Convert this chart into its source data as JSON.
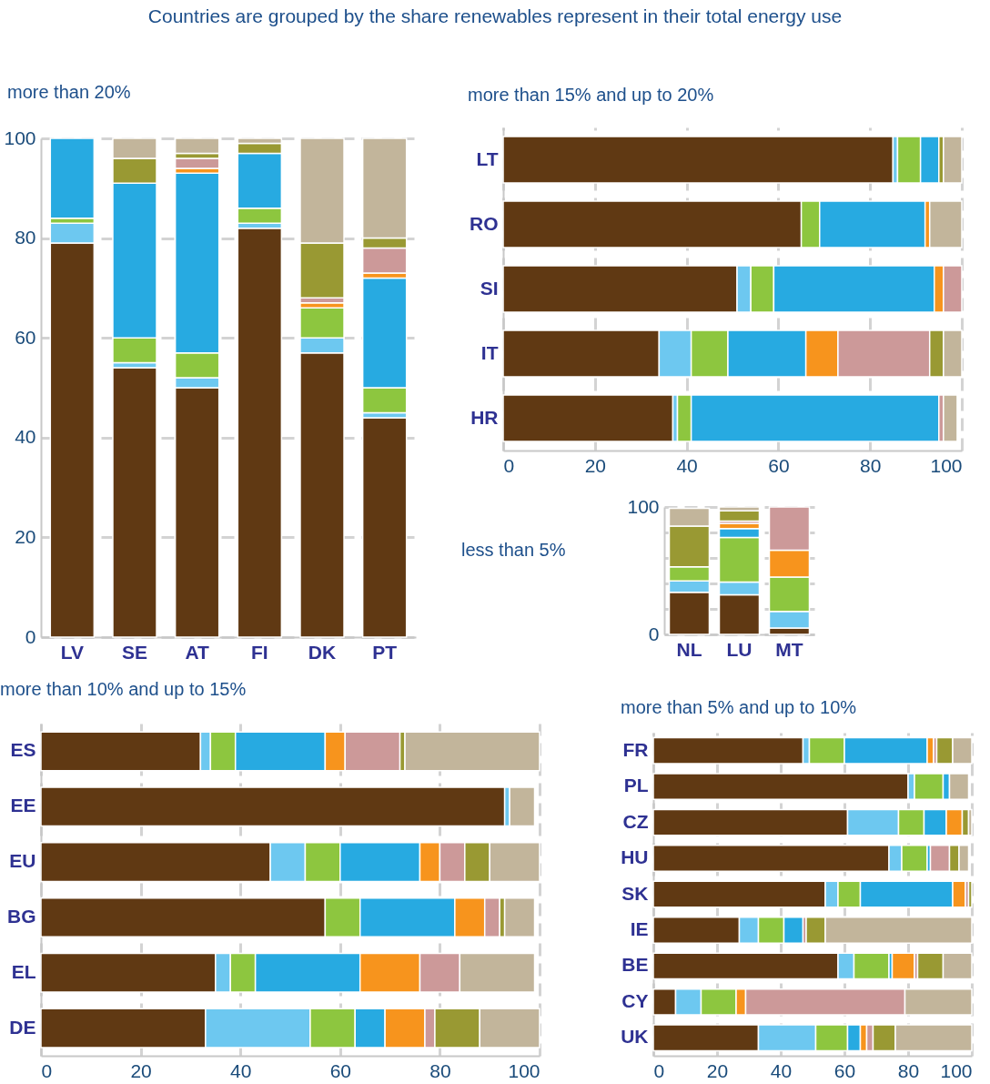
{
  "chart_data": [
    {
      "type": "bar",
      "stacked": true,
      "title": "Countries are grouped by the share renewables represent in their total energy use",
      "subtitle": "more than 20%",
      "categories": [
        "LV",
        "SE",
        "AT",
        "FI",
        "DK",
        "PT"
      ],
      "ylim": [
        0,
        100
      ],
      "yticks": [
        0,
        20,
        40,
        60,
        80,
        100
      ],
      "grid": "y",
      "series": [
        {
          "color": "#603913",
          "values": [
            79,
            54,
            50,
            82,
            57,
            44
          ]
        },
        {
          "color": "#6dc8f0",
          "values": [
            4,
            1,
            2,
            1,
            3,
            1
          ]
        },
        {
          "color": "#8dc63f",
          "values": [
            1,
            5,
            5,
            3,
            6,
            5
          ]
        },
        {
          "color": "#27aae1",
          "values": [
            16,
            31,
            36,
            11,
            null,
            22
          ]
        },
        {
          "color": "#f7941d",
          "values": [
            null,
            null,
            1,
            null,
            1,
            1
          ]
        },
        {
          "color": "#cc9999",
          "values": [
            null,
            null,
            2,
            null,
            1,
            5
          ]
        },
        {
          "color": "#999933",
          "values": [
            null,
            5,
            1,
            2,
            11,
            2
          ]
        },
        {
          "color": "#c2b59b",
          "values": [
            null,
            4,
            3,
            1,
            21,
            20
          ]
        }
      ]
    },
    {
      "type": "bar",
      "stacked": true,
      "orientation": "horizontal",
      "subtitle": "more than 15% and up to 20%",
      "categories": [
        "LT",
        "RO",
        "SI",
        "IT",
        "HR"
      ],
      "xlim": [
        0,
        100
      ],
      "xticks": [
        0,
        20,
        40,
        60,
        80,
        100
      ],
      "grid": "x",
      "series": [
        {
          "color": "#603913",
          "values": [
            85,
            65,
            51,
            34,
            37
          ]
        },
        {
          "color": "#6dc8f0",
          "values": [
            1,
            null,
            3,
            7,
            1
          ]
        },
        {
          "color": "#8dc63f",
          "values": [
            5,
            4,
            5,
            8,
            3
          ]
        },
        {
          "color": "#27aae1",
          "values": [
            4,
            23,
            35,
            17,
            54
          ]
        },
        {
          "color": "#f7941d",
          "values": [
            null,
            1,
            2,
            7,
            null
          ]
        },
        {
          "color": "#cc9999",
          "values": [
            null,
            null,
            4,
            20,
            1
          ]
        },
        {
          "color": "#999933",
          "values": [
            1,
            null,
            null,
            3,
            null
          ]
        },
        {
          "color": "#c2b59b",
          "values": [
            4,
            7,
            null,
            4,
            3
          ]
        }
      ]
    },
    {
      "type": "bar",
      "stacked": true,
      "subtitle": "less than 5%",
      "categories": [
        "NL",
        "LU",
        "MT"
      ],
      "ylim": [
        0,
        100
      ],
      "yticks": [
        0,
        {
          "value": 20,
          "label": null
        },
        {
          "value": 40,
          "label": null
        },
        {
          "value": 60,
          "label": null
        },
        {
          "value": 80,
          "label": null
        },
        100
      ],
      "grid": "y",
      "series": [
        {
          "color": "#603913",
          "values": [
            33,
            31,
            5
          ]
        },
        {
          "color": "#6dc8f0",
          "values": [
            9,
            10,
            13
          ]
        },
        {
          "color": "#8dc63f",
          "values": [
            11,
            35,
            27
          ]
        },
        {
          "color": "#27aae1",
          "values": [
            null,
            7,
            null
          ]
        },
        {
          "color": "#f7941d",
          "values": [
            null,
            4,
            21
          ]
        },
        {
          "color": "#cc9999",
          "values": [
            null,
            2,
            34
          ]
        },
        {
          "color": "#999933",
          "values": [
            32,
            8,
            null
          ]
        },
        {
          "color": "#c2b59b",
          "values": [
            14,
            3,
            null
          ]
        }
      ]
    },
    {
      "type": "bar",
      "stacked": true,
      "orientation": "horizontal",
      "subtitle": "more than 10% and up to 15%",
      "categories": [
        "ES",
        "EE",
        "EU",
        "BG",
        "EL",
        "DE"
      ],
      "xlim": [
        0,
        100
      ],
      "xticks": [
        0,
        20,
        40,
        60,
        80,
        100
      ],
      "grid": "x",
      "series": [
        {
          "color": "#603913",
          "values": [
            32,
            93,
            46,
            57,
            35,
            33
          ]
        },
        {
          "color": "#6dc8f0",
          "values": [
            2,
            1,
            7,
            null,
            3,
            21
          ]
        },
        {
          "color": "#8dc63f",
          "values": [
            5,
            null,
            7,
            7,
            5,
            9
          ]
        },
        {
          "color": "#27aae1",
          "values": [
            18,
            null,
            16,
            19,
            21,
            6
          ]
        },
        {
          "color": "#f7941d",
          "values": [
            4,
            null,
            4,
            6,
            12,
            8
          ]
        },
        {
          "color": "#cc9999",
          "values": [
            11,
            null,
            5,
            3,
            8,
            2
          ]
        },
        {
          "color": "#999933",
          "values": [
            1,
            null,
            5,
            1,
            null,
            9
          ]
        },
        {
          "color": "#c2b59b",
          "values": [
            27,
            5,
            10,
            6,
            15,
            12
          ]
        }
      ]
    },
    {
      "type": "bar",
      "stacked": true,
      "orientation": "horizontal",
      "subtitle": "more than 5% and up to 10%",
      "categories": [
        "FR",
        "PL",
        "CZ",
        "HU",
        "SK",
        "IE",
        "BE",
        "CY",
        "UK"
      ],
      "xlim": [
        0,
        100
      ],
      "xticks": [
        0,
        20,
        40,
        60,
        80,
        100
      ],
      "grid": "x",
      "series": [
        {
          "color": "#603913",
          "values": [
            47,
            80,
            61,
            74,
            54,
            27,
            58,
            7,
            33
          ]
        },
        {
          "color": "#6dc8f0",
          "values": [
            2,
            2,
            16,
            4,
            4,
            6,
            5,
            8,
            18
          ]
        },
        {
          "color": "#8dc63f",
          "values": [
            11,
            9,
            8,
            8,
            7,
            8,
            11,
            11,
            10
          ]
        },
        {
          "color": "#27aae1",
          "values": [
            26,
            2,
            7,
            1,
            29,
            6,
            1,
            null,
            4
          ]
        },
        {
          "color": "#f7941d",
          "values": [
            2,
            null,
            5,
            null,
            4,
            null,
            7,
            3,
            2
          ]
        },
        {
          "color": "#cc9999",
          "values": [
            1,
            null,
            null,
            6,
            1,
            1,
            1,
            50,
            2
          ]
        },
        {
          "color": "#999933",
          "values": [
            5,
            null,
            2,
            3,
            1,
            6,
            8,
            null,
            7
          ]
        },
        {
          "color": "#c2b59b",
          "values": [
            6,
            6,
            1,
            3,
            null,
            46,
            9,
            21,
            24
          ]
        }
      ]
    }
  ]
}
